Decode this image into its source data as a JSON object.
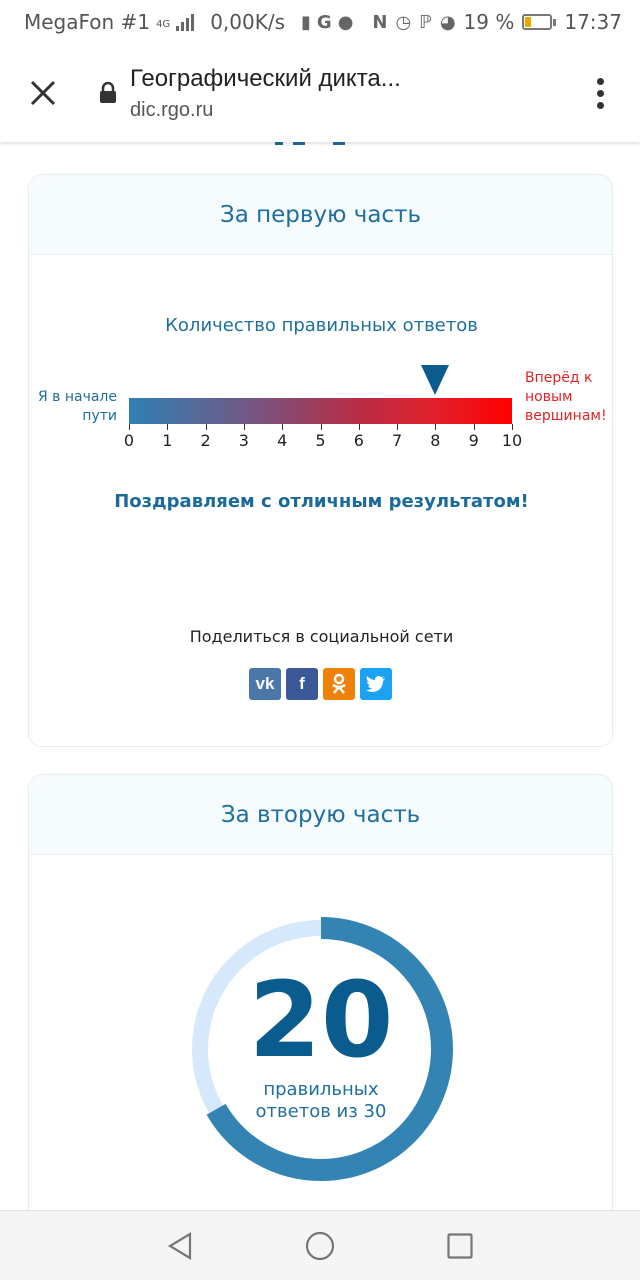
{
  "status_bar": {
    "carrier": "MegaFon #1",
    "network": "4G",
    "speed": "0,00K/s",
    "battery_percent": "19 %",
    "time": "17:37",
    "icons": [
      "signal-icon",
      "battery-saver-icon",
      "google-icon",
      "message-icon",
      "nfc-icon",
      "alarm-icon",
      "bluetooth-icon",
      "speedometer-icon"
    ]
  },
  "browser": {
    "title": "Географический дикта...",
    "url": "dic.rgo.ru"
  },
  "part1": {
    "heading": "За первую часть",
    "chart_caption": "Количество правильных ответов",
    "left_label": "Я в начале пути",
    "right_label": "Вперёд к новым вершинам!",
    "message": "Поздравляем с отличным результатом!",
    "share_label": "Поделиться в социальной сети",
    "social": [
      "vk",
      "facebook",
      "odnoklassniki",
      "twitter"
    ]
  },
  "part2": {
    "heading": "За вторую часть",
    "line1": "правильных",
    "line2": "ответов из 30"
  },
  "chart_data": [
    {
      "type": "bar",
      "categories": [
        "0",
        "1",
        "2",
        "3",
        "4",
        "5",
        "6",
        "7",
        "8",
        "9",
        "10"
      ],
      "range": [
        0,
        10
      ],
      "marker_value": 8,
      "title": "Количество правильных ответов",
      "colors": [
        "#2f80b5",
        "#ff0000"
      ]
    },
    {
      "type": "pie",
      "value": 20,
      "total": 30,
      "value_label": "20",
      "colors": [
        "#3484b3",
        "#d6e8fb"
      ]
    }
  ]
}
